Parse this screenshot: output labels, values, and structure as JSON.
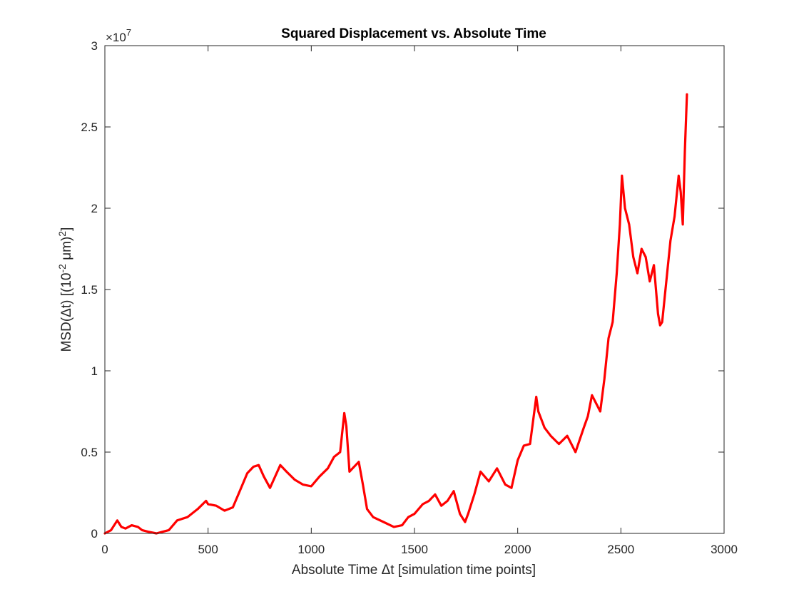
{
  "chart_data": {
    "type": "line",
    "title": "Squared Displacement vs. Absolute Time",
    "xlabel": "Absolute Time Δt [simulation time points]",
    "ylabel": "MSD(Δt) [(10",
    "ylabel_sup1": "-2",
    "ylabel_mid": " μm)",
    "ylabel_sup2": "2",
    "ylabel_end": "]",
    "y_exponent_prefix": "×10",
    "y_exponent": "7",
    "xlim": [
      0,
      3000
    ],
    "ylim": [
      0,
      3
    ],
    "y_scale_factor": 10000000,
    "grid": false,
    "line_color": "#ff0000",
    "x_ticks": [
      0,
      500,
      1000,
      1500,
      2000,
      2500,
      3000
    ],
    "x_tick_labels": [
      "0",
      "500",
      "1000",
      "1500",
      "2000",
      "2500",
      "3000"
    ],
    "y_ticks": [
      0,
      0.5,
      1,
      1.5,
      2,
      2.5,
      3
    ],
    "y_tick_labels": [
      "0",
      "0.5",
      "1",
      "1.5",
      "2",
      "2.5",
      "3"
    ],
    "series": [
      {
        "x": [
          0,
          30,
          60,
          80,
          100,
          130,
          160,
          180,
          210,
          250,
          280,
          310,
          350,
          400,
          450,
          490,
          500,
          540,
          580,
          620,
          650,
          690,
          720,
          745,
          770,
          800,
          850,
          880,
          920,
          960,
          1000,
          1040,
          1080,
          1110,
          1140,
          1160,
          1170,
          1185,
          1200,
          1230,
          1250,
          1270,
          1300,
          1350,
          1400,
          1440,
          1470,
          1500,
          1540,
          1570,
          1600,
          1630,
          1660,
          1690,
          1720,
          1745,
          1760,
          1790,
          1820,
          1860,
          1900,
          1940,
          1970,
          2000,
          2030,
          2060,
          2090,
          2100,
          2130,
          2160,
          2200,
          2240,
          2280,
          2320,
          2340,
          2360,
          2380,
          2400,
          2420,
          2440,
          2460,
          2480,
          2495,
          2505,
          2520,
          2540,
          2560,
          2580,
          2600,
          2620,
          2640,
          2660,
          2680,
          2690,
          2700,
          2720,
          2740,
          2760,
          2780,
          2790,
          2800,
          2810,
          2820
        ],
        "y": [
          0,
          0.02,
          0.08,
          0.04,
          0.03,
          0.05,
          0.04,
          0.02,
          0.01,
          0.0,
          0.01,
          0.02,
          0.08,
          0.1,
          0.15,
          0.2,
          0.18,
          0.17,
          0.14,
          0.16,
          0.25,
          0.37,
          0.41,
          0.42,
          0.35,
          0.28,
          0.42,
          0.38,
          0.33,
          0.3,
          0.29,
          0.35,
          0.4,
          0.47,
          0.5,
          0.74,
          0.66,
          0.38,
          0.4,
          0.44,
          0.3,
          0.15,
          0.1,
          0.07,
          0.04,
          0.05,
          0.1,
          0.12,
          0.18,
          0.2,
          0.24,
          0.17,
          0.2,
          0.26,
          0.12,
          0.07,
          0.12,
          0.24,
          0.38,
          0.32,
          0.4,
          0.3,
          0.28,
          0.45,
          0.54,
          0.55,
          0.84,
          0.75,
          0.65,
          0.6,
          0.55,
          0.6,
          0.5,
          0.65,
          0.72,
          0.85,
          0.8,
          0.75,
          0.95,
          1.2,
          1.3,
          1.6,
          1.9,
          2.2,
          2.0,
          1.9,
          1.7,
          1.6,
          1.75,
          1.7,
          1.55,
          1.65,
          1.35,
          1.28,
          1.3,
          1.55,
          1.8,
          1.95,
          2.2,
          2.1,
          1.9,
          2.35,
          2.7
        ]
      }
    ]
  }
}
